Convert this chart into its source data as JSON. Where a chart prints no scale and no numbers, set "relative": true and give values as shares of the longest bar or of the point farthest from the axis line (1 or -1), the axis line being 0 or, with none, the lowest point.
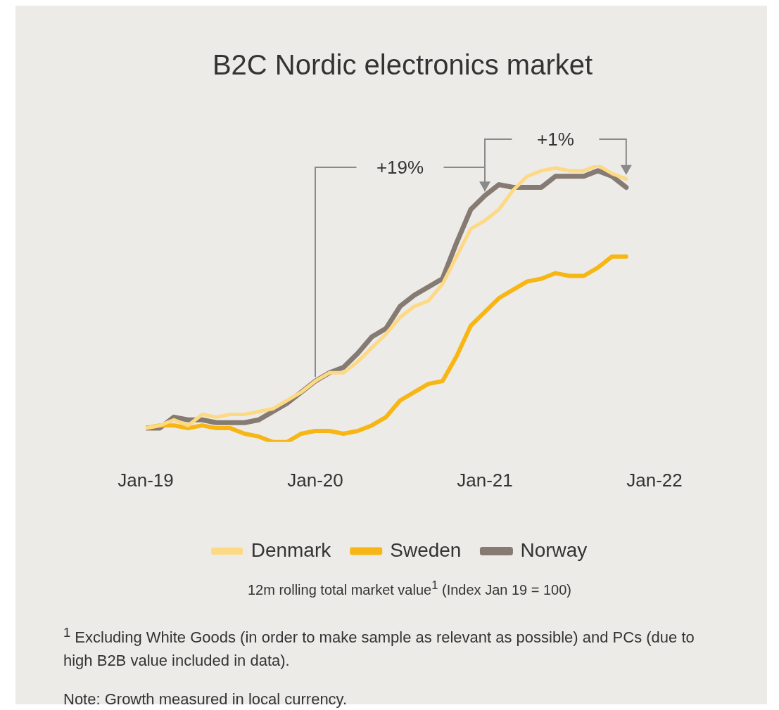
{
  "chart_data": {
    "type": "line",
    "title": "B2C Nordic electronics market",
    "relative": true,
    "x": [
      "2019-01",
      "2019-02",
      "2019-03",
      "2019-04",
      "2019-05",
      "2019-06",
      "2019-07",
      "2019-08",
      "2019-09",
      "2019-10",
      "2019-11",
      "2019-12",
      "2020-01",
      "2020-02",
      "2020-03",
      "2020-04",
      "2020-05",
      "2020-06",
      "2020-07",
      "2020-08",
      "2020-09",
      "2020-10",
      "2020-11",
      "2020-12",
      "2021-01",
      "2021-02",
      "2021-03",
      "2021-04",
      "2021-05",
      "2021-06",
      "2021-07",
      "2021-08",
      "2021-09",
      "2021-10",
      "2021-11"
    ],
    "xlim": [
      "2019-01",
      "2022-01"
    ],
    "xticks": [
      {
        "value": "2019-01",
        "label": "Jan-19"
      },
      {
        "value": "2020-01",
        "label": "Jan-20"
      },
      {
        "value": "2021-01",
        "label": "Jan-21"
      },
      {
        "value": "2022-01",
        "label": "Jan-22"
      }
    ],
    "series": [
      {
        "name": "Denmark",
        "color": "#fdd983",
        "values": [
          0.05,
          0.06,
          0.08,
          0.06,
          0.1,
          0.09,
          0.1,
          0.1,
          0.11,
          0.12,
          0.15,
          0.18,
          0.22,
          0.25,
          0.25,
          0.29,
          0.34,
          0.39,
          0.45,
          0.49,
          0.51,
          0.57,
          0.67,
          0.77,
          0.8,
          0.84,
          0.91,
          0.96,
          0.98,
          0.99,
          0.98,
          0.98,
          1,
          0.97,
          0.95
        ]
      },
      {
        "name": "Sweden",
        "color": "#f7b614",
        "values": [
          0.05,
          0.06,
          0.06,
          0.05,
          0.06,
          0.05,
          0.05,
          0.03,
          0.02,
          0,
          0,
          0.03,
          0.04,
          0.04,
          0.03,
          0.04,
          0.06,
          0.09,
          0.15,
          0.18,
          0.21,
          0.22,
          0.31,
          0.42,
          0.47,
          0.52,
          0.55,
          0.58,
          0.59,
          0.61,
          0.6,
          0.6,
          0.63,
          0.67,
          0.67
        ]
      },
      {
        "name": "Norway",
        "color": "#857b72",
        "values": [
          0.05,
          0.05,
          0.09,
          0.08,
          0.08,
          0.07,
          0.07,
          0.07,
          0.08,
          0.11,
          0.14,
          0.18,
          0.22,
          0.25,
          0.27,
          0.32,
          0.38,
          0.41,
          0.49,
          0.53,
          0.56,
          0.59,
          0.72,
          0.84,
          0.89,
          0.93,
          0.92,
          0.92,
          0.92,
          0.96,
          0.96,
          0.96,
          0.98,
          0.96,
          0.92
        ]
      }
    ],
    "legend": "bottom",
    "grid": false,
    "marker": "none",
    "line_style": "solid",
    "annotations": [
      "+19%",
      "+1%",
      "12m rolling total market value$^{1}$ (Index Jan 19 = 100)",
      "$^{1}$ Excluding White Goods (in order to make sample as relevant as possible) and PCs (due to high B2B value included in data).",
      "Note: Growth measured in local currency."
    ]
  }
}
